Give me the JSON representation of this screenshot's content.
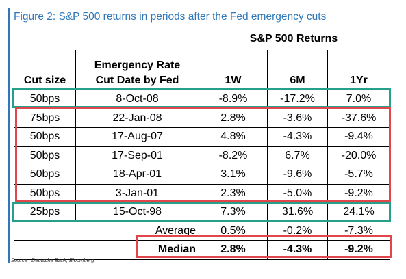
{
  "figure_title": "Figure 2: S&P 500 returns in periods after the Fed emergency cuts",
  "source": "Source : Deutsche Bank, Bloomberg",
  "colors": {
    "title": "#2f78b8",
    "teal_box": "#26a08b",
    "red_box": "#e0474c"
  },
  "chart_data": {
    "type": "table",
    "title": "S&P 500 Returns",
    "columns": [
      "Cut size",
      "Emergency Rate Cut Date by Fed",
      "1W",
      "6M",
      "1Yr"
    ],
    "header": {
      "cut_size": "Cut size",
      "date_line1": "Emergency Rate",
      "date_line2": "Cut Date by Fed",
      "w1": "1W",
      "m6": "6M",
      "y1": "1Yr"
    },
    "rows": [
      {
        "cut": "50bps",
        "date": "8-Oct-08",
        "w1": "-8.9%",
        "m6": "-17.2%",
        "y1": "7.0%"
      },
      {
        "cut": "75bps",
        "date": "22-Jan-08",
        "w1": "2.8%",
        "m6": "-3.6%",
        "y1": "-37.6%"
      },
      {
        "cut": "50bps",
        "date": "17-Aug-07",
        "w1": "4.8%",
        "m6": "-4.3%",
        "y1": "-9.4%"
      },
      {
        "cut": "50bps",
        "date": "17-Sep-01",
        "w1": "-8.2%",
        "m6": "6.7%",
        "y1": "-20.0%"
      },
      {
        "cut": "50bps",
        "date": "18-Apr-01",
        "w1": "3.1%",
        "m6": "-9.6%",
        "y1": "-5.7%"
      },
      {
        "cut": "50bps",
        "date": "3-Jan-01",
        "w1": "2.3%",
        "m6": "-5.0%",
        "y1": "-9.2%"
      },
      {
        "cut": "25bps",
        "date": "15-Oct-98",
        "w1": "7.3%",
        "m6": "31.6%",
        "y1": "24.1%"
      }
    ],
    "summary": [
      {
        "label": "Average",
        "w1": "0.5%",
        "m6": "-0.2%",
        "y1": "-7.3%"
      },
      {
        "label": "Median",
        "w1": "2.8%",
        "m6": "-4.3%",
        "y1": "-9.2%"
      }
    ]
  }
}
